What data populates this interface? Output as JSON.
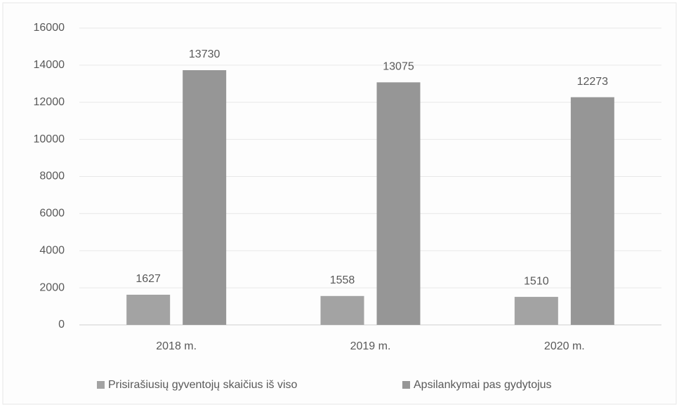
{
  "chart_data": {
    "type": "bar",
    "categories": [
      "2018 m.",
      "2019 m.",
      "2020 m."
    ],
    "series": [
      {
        "name": "Prisirašiusių gyventojų skaičius iš viso",
        "color": "#a3a3a3",
        "values": [
          1627,
          1558,
          1510
        ]
      },
      {
        "name": "Apsilankymai pas gydytojus",
        "color": "#969696",
        "values": [
          13730,
          13075,
          12273
        ]
      }
    ],
    "ylim": [
      0,
      16000
    ],
    "yticks": [
      0,
      2000,
      4000,
      6000,
      8000,
      10000,
      12000,
      14000,
      16000
    ],
    "grid": true,
    "legend": "bottom"
  }
}
